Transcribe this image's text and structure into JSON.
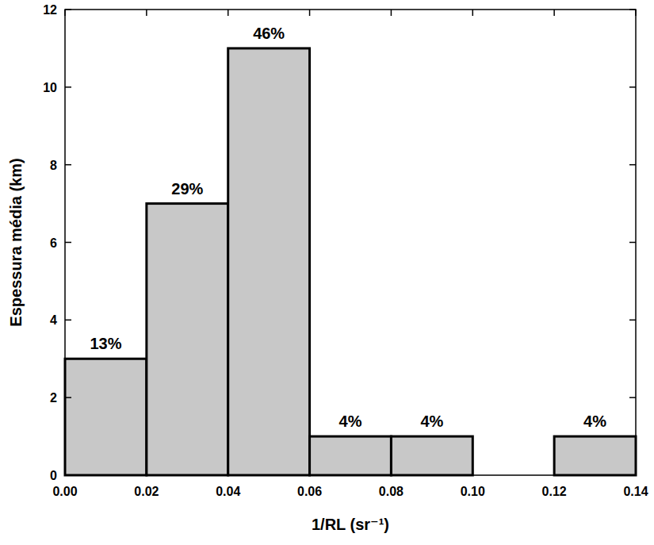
{
  "chart_data": {
    "type": "histogram",
    "x_label": "1/RL (sr⁻¹)",
    "y_label": "Espessura média (km)",
    "bins": [
      0,
      0.02,
      0.04,
      0.06,
      0.08,
      0.1,
      0.12,
      0.14
    ],
    "values": [
      3,
      7,
      11,
      1,
      1,
      0,
      1
    ],
    "percent_labels": [
      "13%",
      "29%",
      "46%",
      "4%",
      "4%",
      null,
      "4%"
    ],
    "color": "#c8c8c8",
    "xlim": [
      0,
      0.14
    ],
    "ylim": [
      0,
      12
    ],
    "xticks": [
      {
        "value": 0,
        "label": "0.00"
      },
      {
        "value": 0.02,
        "label": "0.02"
      },
      {
        "value": 0.04,
        "label": "0.04"
      },
      {
        "value": 0.06,
        "label": "0.06"
      },
      {
        "value": 0.08,
        "label": "0.08"
      },
      {
        "value": 0.1,
        "label": "0.10"
      },
      {
        "value": 0.12,
        "label": "0.12"
      },
      {
        "value": 0.14,
        "label": "0.14"
      }
    ],
    "yticks": [
      0,
      2,
      4,
      6,
      8,
      10,
      12
    ],
    "grid": false
  }
}
